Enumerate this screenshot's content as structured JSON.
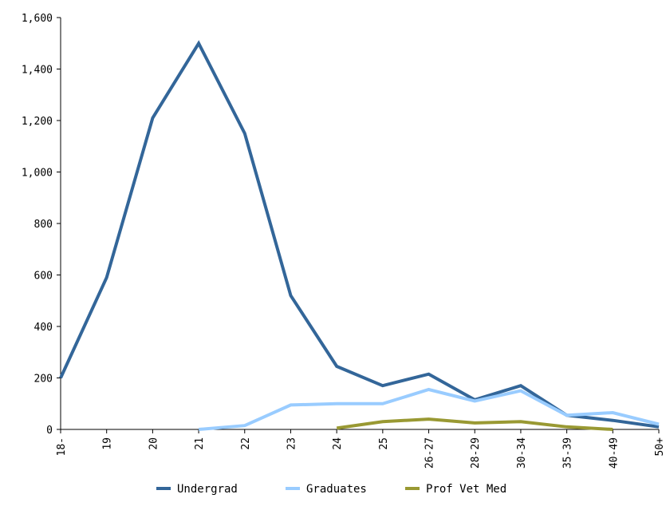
{
  "chart_data": {
    "type": "line",
    "categories": [
      "18-",
      "19",
      "20",
      "21",
      "22",
      "23",
      "24",
      "25",
      "26-27",
      "28-29",
      "30-34",
      "35-39",
      "40-49",
      "50+"
    ],
    "ylim": [
      0,
      1600
    ],
    "yticks": [
      0,
      200,
      400,
      600,
      800,
      1000,
      1200,
      1400,
      1600
    ],
    "ytick_labels": [
      "0",
      "200",
      "400",
      "600",
      "800",
      "1,000",
      "1,200",
      "1,400",
      "1,600"
    ],
    "grid": false,
    "legend_position": "bottom",
    "series": [
      {
        "name": "Undergrad",
        "color": "#336699",
        "values": [
          200,
          590,
          1210,
          1500,
          1150,
          520,
          245,
          170,
          215,
          115,
          170,
          55,
          35,
          10
        ]
      },
      {
        "name": "Graduates",
        "color": "#99ccff",
        "values": [
          null,
          null,
          null,
          0,
          15,
          95,
          100,
          100,
          155,
          110,
          150,
          55,
          65,
          20
        ]
      },
      {
        "name": "Prof Vet Med",
        "color": "#999933",
        "values": [
          null,
          null,
          null,
          null,
          null,
          null,
          5,
          30,
          40,
          25,
          30,
          10,
          0,
          null
        ]
      }
    ]
  }
}
